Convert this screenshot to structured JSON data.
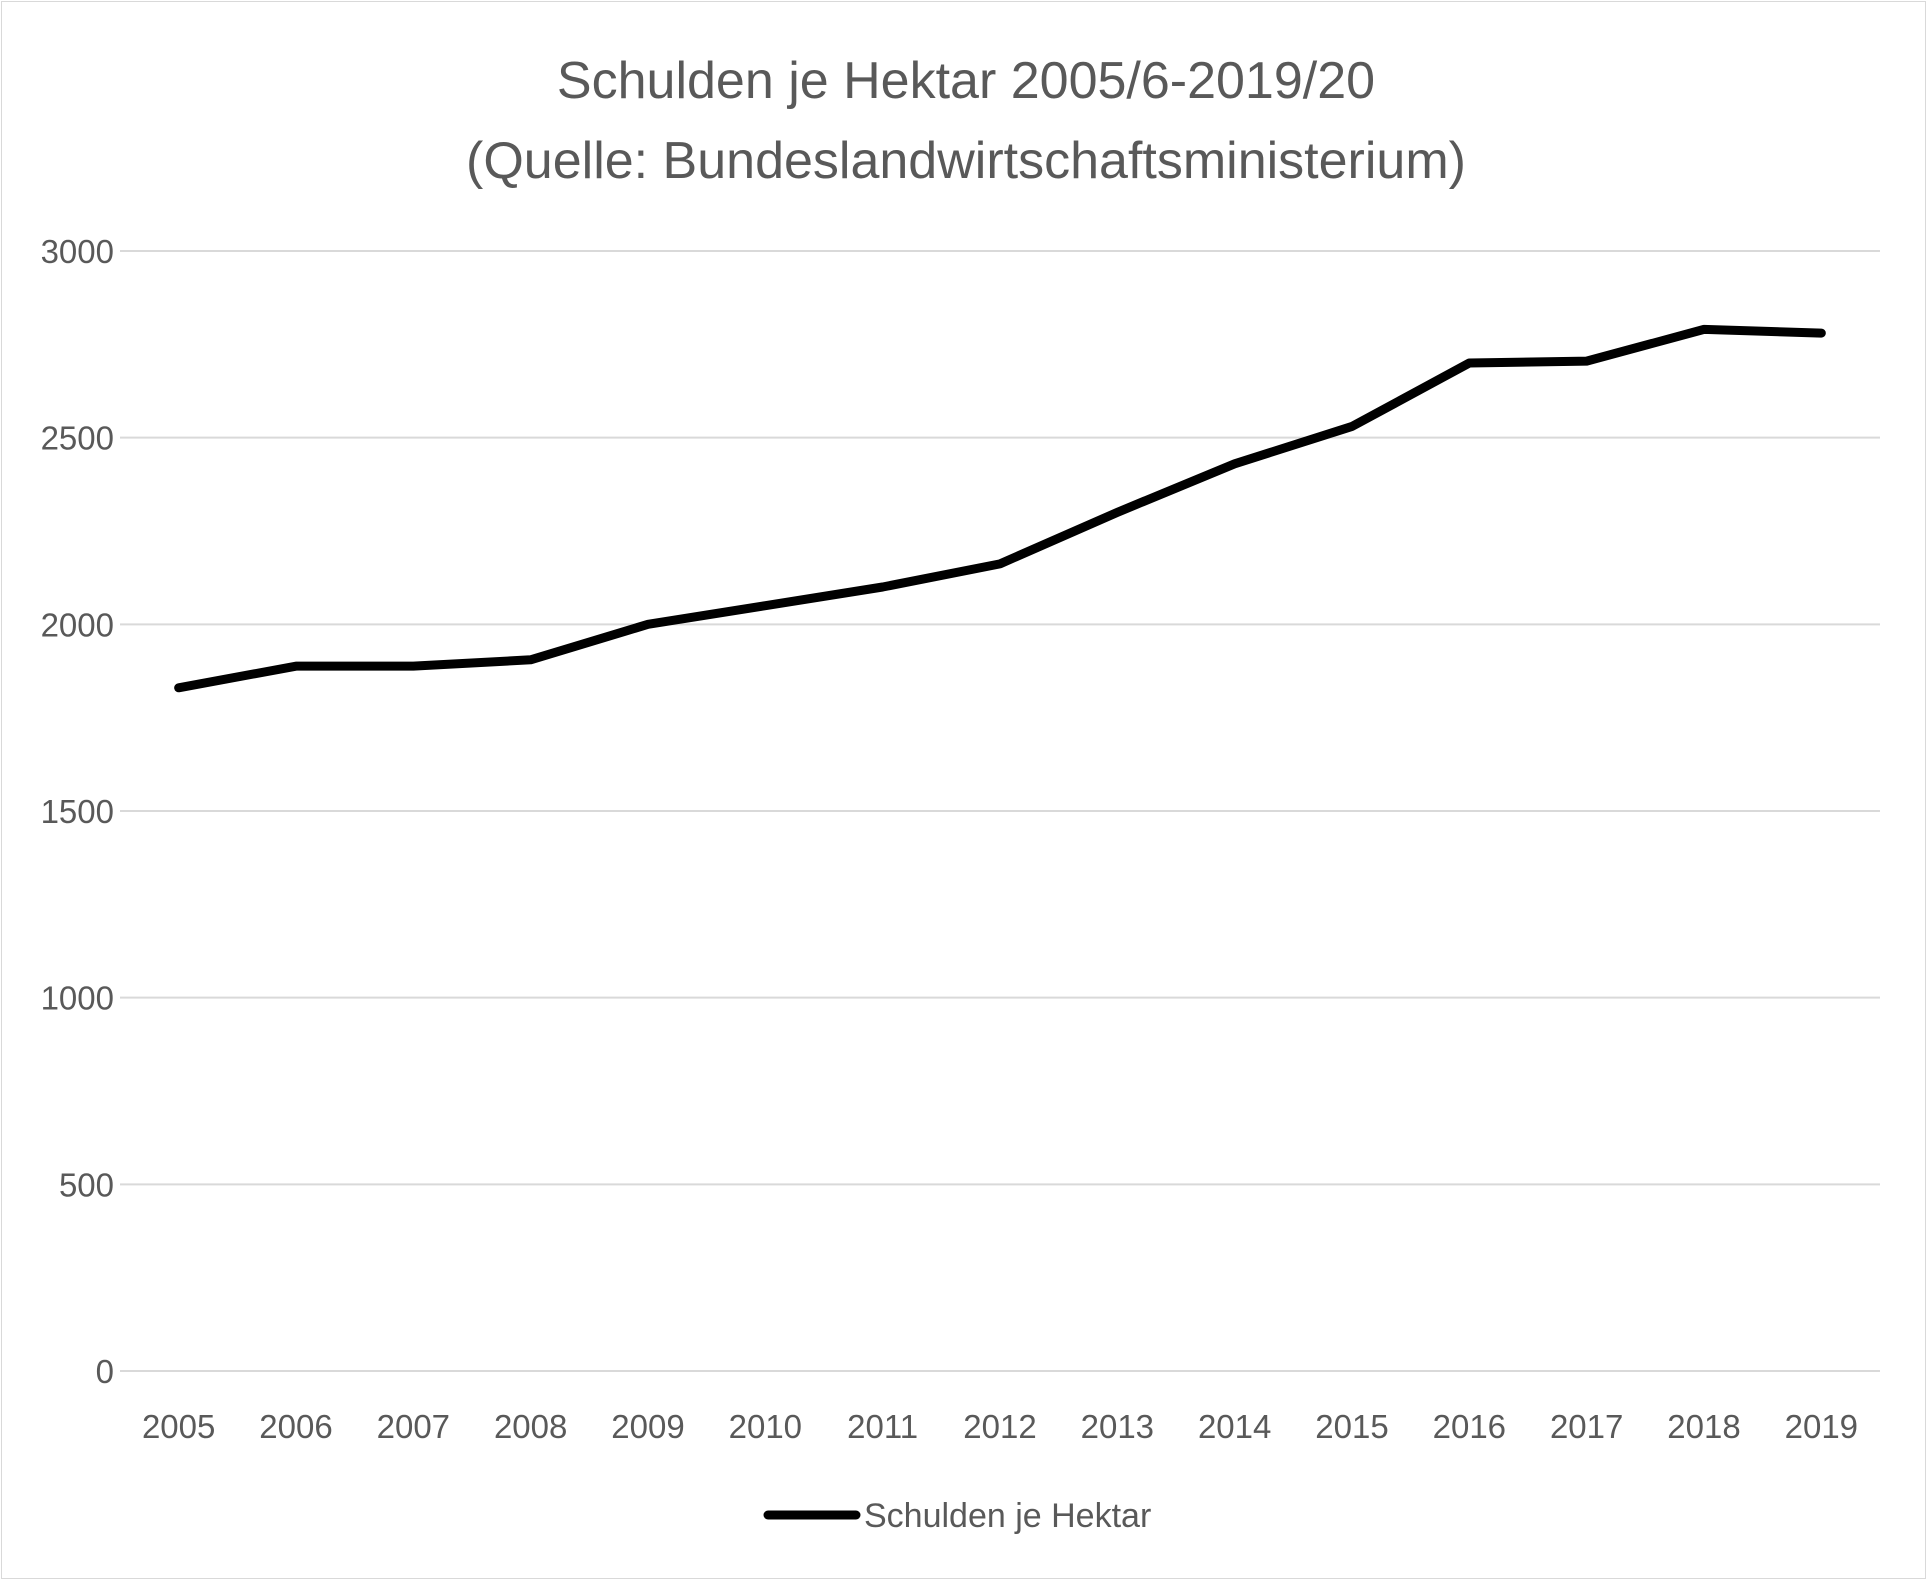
{
  "chart_data": {
    "type": "line",
    "title": "Schulden je Hektar 2005/6-2019/20",
    "subtitle": "(Quelle: Bundeslandwirtschaftsministerium)",
    "xlabel": "",
    "ylabel": "",
    "categories": [
      "2005",
      "2006",
      "2007",
      "2008",
      "2009",
      "2010",
      "2011",
      "2012",
      "2013",
      "2014",
      "2015",
      "2016",
      "2017",
      "2018",
      "2019"
    ],
    "series": [
      {
        "name": "Schulden je Hektar",
        "values": [
          1830,
          1888,
          1888,
          1905,
          2000,
          2050,
          2100,
          2162,
          2300,
          2430,
          2530,
          2700,
          2705,
          2790,
          2780
        ],
        "color": "#000000"
      }
    ],
    "ylim": [
      0,
      3000
    ],
    "yticks": [
      "0",
      "500",
      "1000",
      "1500",
      "2000",
      "2500",
      "3000"
    ],
    "grid": true,
    "legend": "bottom"
  }
}
